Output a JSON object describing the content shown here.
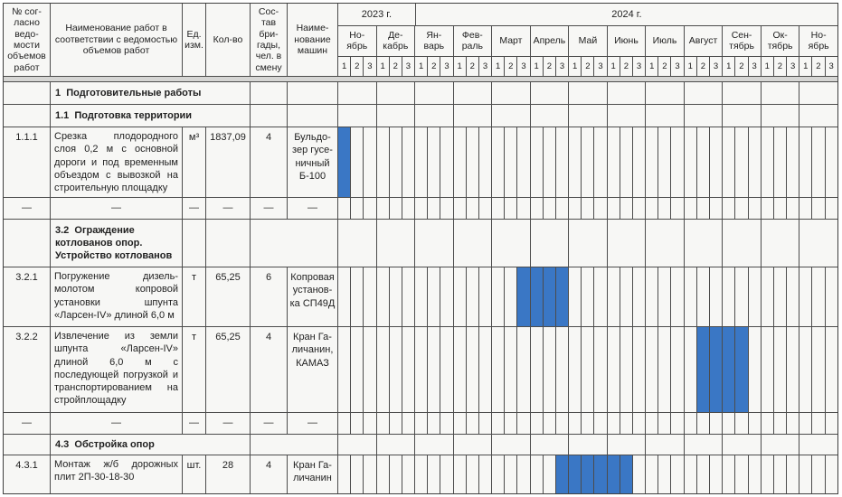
{
  "document": {
    "kind": "construction work calendar schedule table with gantt bars",
    "language": "ru"
  },
  "header": {
    "columns": [
      {
        "label": "№ сог-\nласно\nведо-\nмости\nобъемов\nработ"
      },
      {
        "label": "Наименование работ в\nсоответствии с ведомостью\nобъемов работ"
      },
      {
        "label": "Ед.\nизм."
      },
      {
        "label": "Кол-во"
      },
      {
        "label": "Сос-\nтав\nбри-\nгады,\nчел. в\nсмену"
      },
      {
        "label": "Наиме-\nнование\nмашин"
      }
    ],
    "years": [
      {
        "label": "2023 г.",
        "months": 2
      },
      {
        "label": "2024 г.",
        "months": 11
      }
    ],
    "months": [
      "Но-\nябрь",
      "Де-\nкабрь",
      "Ян-\nварь",
      "Фев-\nраль",
      "Март",
      "Апрель",
      "Май",
      "Июнь",
      "Июль",
      "Август",
      "Сен-\nтябрь",
      "Ок-\nтябрь",
      "Но-\nябрь"
    ],
    "decade_labels": [
      "1",
      "2",
      "3"
    ]
  },
  "rows": [
    {
      "type": "section",
      "merge": "wide-left",
      "title": "1  Подготовительные работы"
    },
    {
      "type": "section",
      "merge": "wide-left",
      "title": "1.1  Подготовка территории"
    },
    {
      "type": "item",
      "num": "1.1.1",
      "name": "Срезка плодородного слоя 0,2 м с основной дороги и под временным объездом с вывозкой на строительную площадку",
      "unit": "м³",
      "qty": "1837,09",
      "crew": "4",
      "machine": "Бульдо-\nзер гусе-\nничный\nБ-100",
      "bars": [
        {
          "start": 0,
          "span": 1
        }
      ]
    },
    {
      "type": "dash",
      "dash": "—"
    },
    {
      "type": "section",
      "merge": "split-left",
      "title": "3.2  Ограждение котлованов опор. Устройство котлованов"
    },
    {
      "type": "item",
      "num": "3.2.1",
      "name": "Погружение дизель-молотом копровой установки шпунта «Ларсен-IV» длиной 6,0 м",
      "unit": "т",
      "qty": "65,25",
      "crew": "6",
      "machine": "Копровая\nустанов-\nка СП49Д",
      "bars": [
        {
          "start": 14,
          "span": 4
        }
      ]
    },
    {
      "type": "item",
      "num": "3.2.2",
      "name": "Извлечение из земли шпунта «Ларсен-IV» длиной 6,0 м с последующей погрузкой и транспортированием на стройплощадку",
      "unit": "т",
      "qty": "65,25",
      "crew": "4",
      "machine": "Кран Га-\nличанин,\nКАМАЗ",
      "bars": [
        {
          "start": 28,
          "span": 4
        }
      ]
    },
    {
      "type": "dash",
      "dash": "—"
    },
    {
      "type": "section",
      "merge": "wide-both",
      "title": "4.3  Обстройка опор"
    },
    {
      "type": "item",
      "num": "4.3.1",
      "name": "Монтаж ж/б дорожных плит 2П-30-18-30",
      "unit": "шт.",
      "qty": "28",
      "crew": "4",
      "machine": "Кран Га-\nличанин",
      "bars": [
        {
          "start": 17,
          "span": 6
        }
      ]
    }
  ],
  "colors": {
    "bar_fill": "#3a77c5",
    "grid_line": "#4c4c4c",
    "table_background": "#f7f7f5",
    "separator_band": "#d6d6d4"
  }
}
